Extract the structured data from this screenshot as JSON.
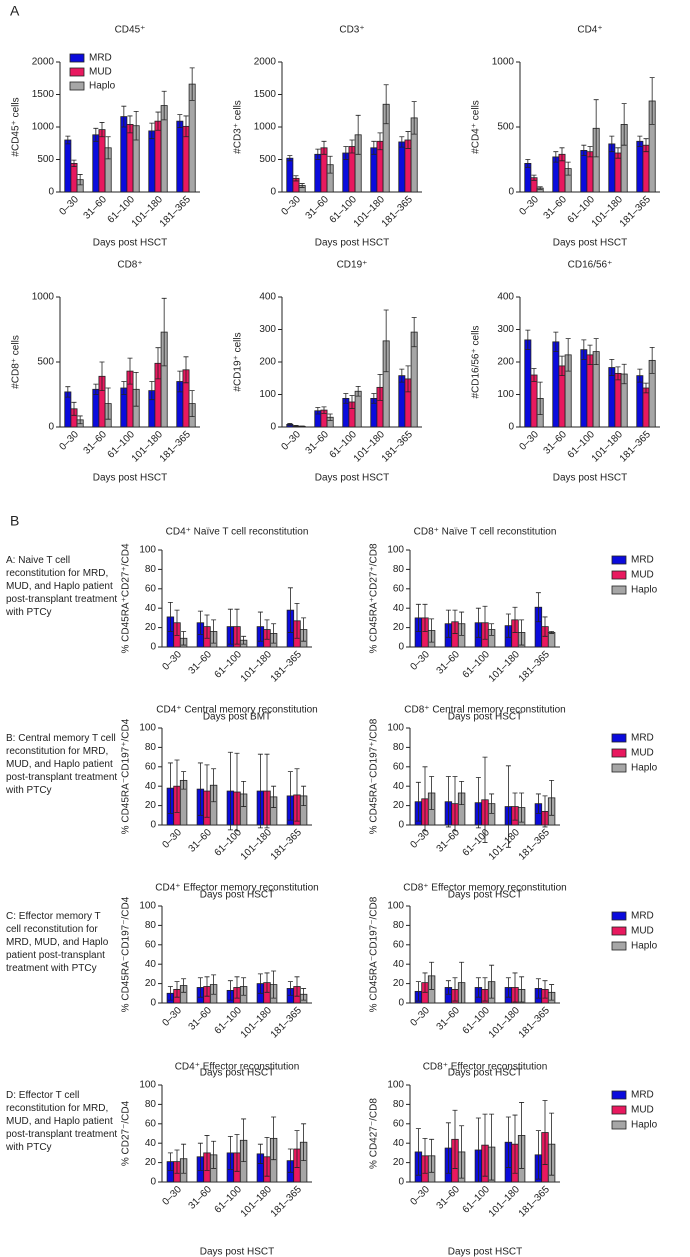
{
  "panel_labels": [
    "A",
    "B"
  ],
  "row_notes": [
    "A: Naive T cell reconstitution for MRD, MUD, and Haplo patient post-transplant treatment with PTCy",
    "B: Central memory T cell reconstitution for MRD, MUD, and Haplo patient post-transplant treatment with PTCy",
    "C: Effector memory T cell reconstitution for MRD, MUD, and Haplo patient post-transplant treatment with PTCy",
    "D: Effector T cell reconstitution for MRD, MUD, and Haplo patient post-transplant treatment with PTCy"
  ],
  "chart_data": [
    {
      "type": "bar",
      "title": "CD45⁺",
      "ylabel": "#CD45⁺ cells",
      "xlabel": "Days post HSCT",
      "categories": [
        "0–30",
        "31–60",
        "61–100",
        "101–180",
        "181–365"
      ],
      "ylim": [
        0,
        2000
      ],
      "yticks": [
        0,
        500,
        1000,
        1500,
        2000
      ],
      "legend": "upper left",
      "series": [
        {
          "name": "MRD",
          "color": "#0b0bdc",
          "values": [
            800,
            880,
            1160,
            940,
            1090
          ],
          "errors": [
            60,
            100,
            160,
            120,
            100
          ]
        },
        {
          "name": "MUD",
          "color": "#e8195f",
          "values": [
            440,
            960,
            1040,
            1090,
            1010
          ],
          "errors": [
            50,
            110,
            130,
            140,
            160
          ]
        },
        {
          "name": "Haplo",
          "color": "#a6a6a6",
          "values": [
            190,
            680,
            1020,
            1330,
            1660
          ],
          "errors": [
            80,
            170,
            220,
            220,
            250
          ]
        }
      ]
    },
    {
      "type": "bar",
      "title": "CD3⁺",
      "ylabel": "#CD3⁺ cells",
      "xlabel": "Days post HSCT",
      "categories": [
        "0–30",
        "31–60",
        "61–100",
        "101–180",
        "181–365"
      ],
      "ylim": [
        0,
        2000
      ],
      "yticks": [
        0,
        500,
        1000,
        1500,
        2000
      ],
      "series": [
        {
          "name": "MRD",
          "color": "#0b0bdc",
          "values": [
            520,
            580,
            600,
            680,
            770
          ],
          "errors": [
            40,
            80,
            100,
            100,
            80
          ]
        },
        {
          "name": "MUD",
          "color": "#e8195f",
          "values": [
            210,
            680,
            700,
            780,
            800
          ],
          "errors": [
            40,
            100,
            100,
            130,
            130
          ]
        },
        {
          "name": "Haplo",
          "color": "#a6a6a6",
          "values": [
            100,
            420,
            880,
            1350,
            1140
          ],
          "errors": [
            30,
            130,
            300,
            300,
            250
          ]
        }
      ]
    },
    {
      "type": "bar",
      "title": "CD4⁺",
      "ylabel": "#CD4⁺ cells",
      "xlabel": "Days post HSCT",
      "categories": [
        "0–30",
        "31–60",
        "61–100",
        "101–180",
        "181–365"
      ],
      "ylim": [
        0,
        1000
      ],
      "yticks": [
        0,
        500,
        1000
      ],
      "series": [
        {
          "name": "MRD",
          "color": "#0b0bdc",
          "values": [
            220,
            270,
            320,
            370,
            390
          ],
          "errors": [
            30,
            40,
            40,
            60,
            40
          ]
        },
        {
          "name": "MUD",
          "color": "#e8195f",
          "values": [
            110,
            290,
            310,
            300,
            360
          ],
          "errors": [
            20,
            50,
            40,
            40,
            50
          ]
        },
        {
          "name": "Haplo",
          "color": "#a6a6a6",
          "values": [
            30,
            180,
            490,
            520,
            700
          ],
          "errors": [
            10,
            50,
            220,
            160,
            180
          ]
        }
      ]
    },
    {
      "type": "bar",
      "title": "CD8⁺",
      "ylabel": "#CD8⁺ cells",
      "xlabel": "Days post HSCT",
      "categories": [
        "0–30",
        "31–60",
        "61–100",
        "101–180",
        "181–365"
      ],
      "ylim": [
        0,
        1000
      ],
      "yticks": [
        0,
        500,
        1000
      ],
      "series": [
        {
          "name": "MRD",
          "color": "#0b0bdc",
          "values": [
            270,
            290,
            300,
            280,
            350
          ],
          "errors": [
            40,
            40,
            50,
            70,
            80
          ]
        },
        {
          "name": "MUD",
          "color": "#e8195f",
          "values": [
            140,
            390,
            430,
            490,
            440
          ],
          "errors": [
            50,
            110,
            100,
            120,
            100
          ]
        },
        {
          "name": "Haplo",
          "color": "#a6a6a6",
          "values": [
            55,
            180,
            290,
            730,
            180
          ],
          "errors": [
            30,
            120,
            130,
            260,
            100
          ]
        }
      ]
    },
    {
      "type": "bar",
      "title": "CD19⁺",
      "ylabel": "#CD19⁺ cells",
      "xlabel": "Days post HSCT",
      "categories": [
        "0–30",
        "31–60",
        "61–100",
        "101–180",
        "181–365"
      ],
      "ylim": [
        0,
        400
      ],
      "yticks": [
        0,
        100,
        200,
        300,
        400
      ],
      "series": [
        {
          "name": "MRD",
          "color": "#0b0bdc",
          "values": [
            8,
            50,
            88,
            88,
            158
          ],
          "errors": [
            3,
            10,
            15,
            15,
            20
          ]
        },
        {
          "name": "MUD",
          "color": "#e8195f",
          "values": [
            3,
            52,
            77,
            122,
            148
          ],
          "errors": [
            2,
            10,
            20,
            40,
            40
          ]
        },
        {
          "name": "Haplo",
          "color": "#a6a6a6",
          "values": [
            2,
            30,
            110,
            265,
            292
          ],
          "errors": [
            1,
            10,
            15,
            95,
            45
          ]
        }
      ]
    },
    {
      "type": "bar",
      "title": "CD16/56⁺",
      "ylabel": "#CD16/56⁺ cells",
      "xlabel": "Days post HSCT",
      "categories": [
        "0–30",
        "31–60",
        "61–100",
        "101–180",
        "181–365"
      ],
      "ylim": [
        0,
        400
      ],
      "yticks": [
        0,
        100,
        200,
        300,
        400
      ],
      "series": [
        {
          "name": "MRD",
          "color": "#0b0bdc",
          "values": [
            268,
            262,
            238,
            183,
            158
          ],
          "errors": [
            30,
            30,
            30,
            25,
            20
          ]
        },
        {
          "name": "MUD",
          "color": "#e8195f",
          "values": [
            160,
            188,
            222,
            165,
            120
          ],
          "errors": [
            20,
            30,
            30,
            20,
            15
          ]
        },
        {
          "name": "Haplo",
          "color": "#a6a6a6",
          "values": [
            88,
            222,
            232,
            163,
            205
          ],
          "errors": [
            50,
            50,
            40,
            30,
            40
          ]
        }
      ]
    },
    {
      "type": "bar",
      "title": "CD4⁺ Naïve T cell reconstitution",
      "ylabel": "% CD45RA⁺CD27⁺/CD4",
      "xlabel": "Days post BMT",
      "categories": [
        "0–30",
        "31–60",
        "61–100",
        "101–180",
        "181–365"
      ],
      "ylim": [
        0,
        100
      ],
      "yticks": [
        0,
        20,
        40,
        60,
        80,
        100
      ],
      "series": [
        {
          "name": "MRD",
          "color": "#0b0bdc",
          "values": [
            31,
            25,
            21,
            21,
            38
          ],
          "errors": [
            15,
            12,
            18,
            15,
            23
          ]
        },
        {
          "name": "MUD",
          "color": "#e8195f",
          "values": [
            25,
            21,
            21,
            18,
            27
          ],
          "errors": [
            13,
            12,
            18,
            10,
            18
          ]
        },
        {
          "name": "Haplo",
          "color": "#a6a6a6",
          "values": [
            9,
            16,
            7,
            14,
            18
          ],
          "errors": [
            7,
            12,
            4,
            10,
            12
          ]
        }
      ]
    },
    {
      "type": "bar",
      "title": "CD8⁺ Naïve T cell reconstitution",
      "ylabel": "% CD45RA⁺CD27⁺/CD8",
      "xlabel": "Days post HSCT",
      "categories": [
        "0–30",
        "31–60",
        "61–100",
        "101–180",
        "181–365"
      ],
      "ylim": [
        0,
        100
      ],
      "yticks": [
        0,
        20,
        40,
        60,
        80,
        100
      ],
      "legend": "right",
      "series": [
        {
          "name": "MRD",
          "color": "#0b0bdc",
          "values": [
            30,
            24,
            25,
            22,
            41
          ],
          "errors": [
            14,
            14,
            15,
            12,
            15
          ]
        },
        {
          "name": "MUD",
          "color": "#e8195f",
          "values": [
            30,
            26,
            25,
            28,
            21
          ],
          "errors": [
            14,
            12,
            17,
            13,
            10
          ]
        },
        {
          "name": "Haplo",
          "color": "#a6a6a6",
          "values": [
            17,
            24,
            18,
            15,
            15
          ],
          "errors": [
            12,
            12,
            6,
            13,
            1
          ]
        }
      ]
    },
    {
      "type": "bar",
      "title": "CD4⁺ Central memory reconstitution",
      "ylabel": "% CD45RA⁻CD197⁺/CD4",
      "xlabel": "Days post HSCT",
      "categories": [
        "0–30",
        "31–60",
        "61–100",
        "101–180",
        "181–365"
      ],
      "ylim": [
        0,
        100
      ],
      "yticks": [
        0,
        20,
        40,
        60,
        80,
        100
      ],
      "series": [
        {
          "name": "MRD",
          "color": "#0b0bdc",
          "values": [
            38,
            37,
            35,
            35,
            30
          ],
          "errors": [
            26,
            27,
            40,
            38,
            25
          ]
        },
        {
          "name": "MUD",
          "color": "#e8195f",
          "values": [
            40,
            35,
            34,
            35,
            31
          ],
          "errors": [
            27,
            27,
            40,
            38,
            27
          ]
        },
        {
          "name": "Haplo",
          "color": "#a6a6a6",
          "values": [
            46,
            41,
            32,
            29,
            30
          ],
          "errors": [
            9,
            17,
            13,
            11,
            10
          ]
        }
      ]
    },
    {
      "type": "bar",
      "title": "CD8⁺ Central memory reconstitution",
      "ylabel": "% CD45RA⁻CD197⁺/CD8",
      "xlabel": "Days post HSCT",
      "categories": [
        "0–30",
        "31–60",
        "61–100",
        "101–180",
        "181–365"
      ],
      "ylim": [
        0,
        100
      ],
      "yticks": [
        0,
        20,
        40,
        60,
        80,
        100
      ],
      "legend": "right",
      "series": [
        {
          "name": "MRD",
          "color": "#0b0bdc",
          "values": [
            24,
            24,
            23,
            19,
            22
          ],
          "errors": [
            20,
            26,
            26,
            42,
            10
          ]
        },
        {
          "name": "MUD",
          "color": "#e8195f",
          "values": [
            27,
            22,
            26,
            19,
            14
          ],
          "errors": [
            33,
            28,
            44,
            14,
            16
          ]
        },
        {
          "name": "Haplo",
          "color": "#a6a6a6",
          "values": [
            33,
            33,
            22,
            18,
            28
          ],
          "errors": [
            17,
            12,
            10,
            15,
            18
          ]
        }
      ]
    },
    {
      "type": "bar",
      "title": "CD4⁺ Effector memory reconstitution",
      "ylabel": "% CD45RA⁻CD197⁻/CD4",
      "xlabel": "Days post HSCT",
      "categories": [
        "0–30",
        "31–60",
        "61–100",
        "101–180",
        "181–365"
      ],
      "ylim": [
        0,
        100
      ],
      "yticks": [
        0,
        20,
        40,
        60,
        80,
        100
      ],
      "series": [
        {
          "name": "MRD",
          "color": "#0b0bdc",
          "values": [
            10,
            16,
            13,
            20,
            15
          ],
          "errors": [
            7,
            10,
            10,
            10,
            7
          ]
        },
        {
          "name": "MUD",
          "color": "#e8195f",
          "values": [
            14,
            17,
            16,
            21,
            17
          ],
          "errors": [
            8,
            10,
            11,
            10,
            10
          ]
        },
        {
          "name": "Haplo",
          "color": "#a6a6a6",
          "values": [
            18,
            19,
            17,
            19,
            9
          ],
          "errors": [
            7,
            10,
            9,
            14,
            6
          ]
        }
      ]
    },
    {
      "type": "bar",
      "title": "CD8⁺ Effector memory reconstitution",
      "ylabel": "% CD45RA⁻CD197⁻/CD8",
      "xlabel": "Days post HSCT",
      "categories": [
        "0–30",
        "31–60",
        "61–100",
        "101–180",
        "181–365"
      ],
      "ylim": [
        0,
        100
      ],
      "yticks": [
        0,
        20,
        40,
        60,
        80,
        100
      ],
      "legend": "right",
      "series": [
        {
          "name": "MRD",
          "color": "#0b0bdc",
          "values": [
            12,
            16,
            16,
            16,
            15
          ],
          "errors": [
            10,
            7,
            10,
            10,
            10
          ]
        },
        {
          "name": "MUD",
          "color": "#e8195f",
          "values": [
            21,
            14,
            14,
            16,
            14
          ],
          "errors": [
            10,
            12,
            12,
            15,
            9
          ]
        },
        {
          "name": "Haplo",
          "color": "#a6a6a6",
          "values": [
            28,
            21,
            22,
            14,
            11
          ],
          "errors": [
            14,
            21,
            17,
            13,
            8
          ]
        }
      ]
    },
    {
      "type": "bar",
      "title": "CD4⁺ Effector reconstitution",
      "ylabel": "% CD27⁻/CD4",
      "xlabel": "Days post HSCT",
      "categories": [
        "0–30",
        "31–60",
        "61–100",
        "101–180",
        "181–365"
      ],
      "ylim": [
        0,
        100
      ],
      "yticks": [
        0,
        20,
        40,
        60,
        80,
        100
      ],
      "series": [
        {
          "name": "MRD",
          "color": "#0b0bdc",
          "values": [
            21,
            26,
            30,
            29,
            22
          ],
          "errors": [
            9,
            14,
            17,
            10,
            12
          ]
        },
        {
          "name": "MUD",
          "color": "#e8195f",
          "values": [
            21,
            30,
            30,
            26,
            34
          ],
          "errors": [
            12,
            18,
            19,
            20,
            19
          ]
        },
        {
          "name": "Haplo",
          "color": "#a6a6a6",
          "values": [
            24,
            28,
            43,
            45,
            41
          ],
          "errors": [
            15,
            14,
            22,
            22,
            19
          ]
        }
      ]
    },
    {
      "type": "bar",
      "title": "CD8⁺ Effector reconstitution",
      "ylabel": "% CD427⁻/CD8",
      "xlabel": "Days post HSCT",
      "categories": [
        "0–30",
        "31–60",
        "61–100",
        "101–180",
        "181–365"
      ],
      "ylim": [
        0,
        100
      ],
      "yticks": [
        0,
        20,
        40,
        60,
        80,
        100
      ],
      "legend": "right",
      "series": [
        {
          "name": "MRD",
          "color": "#0b0bdc",
          "values": [
            31,
            35,
            33,
            41,
            28
          ],
          "errors": [
            24,
            26,
            33,
            26,
            25
          ]
        },
        {
          "name": "MUD",
          "color": "#e8195f",
          "values": [
            27,
            44,
            38,
            39,
            51
          ],
          "errors": [
            18,
            30,
            32,
            30,
            33
          ]
        },
        {
          "name": "Haplo",
          "color": "#a6a6a6",
          "values": [
            27,
            31,
            36,
            48,
            39
          ],
          "errors": [
            17,
            27,
            34,
            34,
            32
          ]
        }
      ]
    }
  ]
}
